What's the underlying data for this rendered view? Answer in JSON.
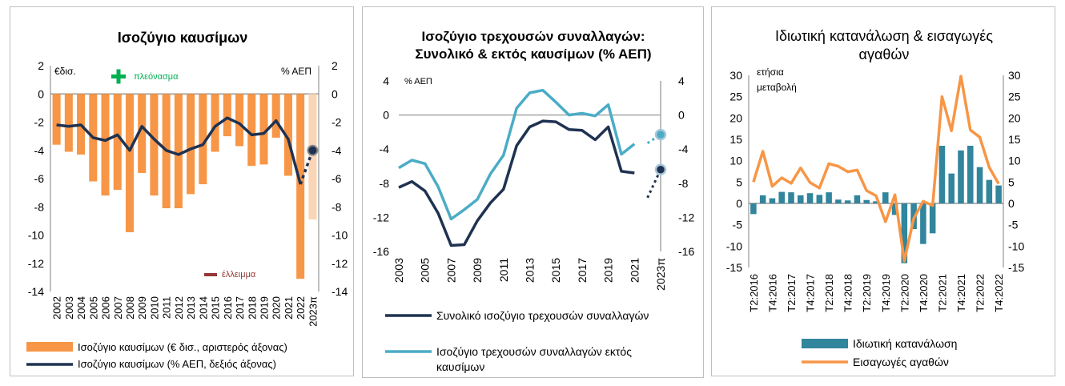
{
  "charts": [
    {
      "title": "Ισοζύγιο καυσίμων",
      "left_unit": "€δισ.",
      "right_unit": "% ΑΕΠ",
      "annotation_surplus": "πλεόνασμα",
      "annotation_deficit": "έλλειμμα",
      "legend": [
        "Ισοζύγιο καυσίμων (€ δισ., αριστερός άξονας)",
        "Ισοζύγιο καυσίμων (% ΑΕΠ, δεξιός άξονας)"
      ]
    },
    {
      "title_lines": [
        "Ισοζύγιο τρεχουσών συναλλαγών:",
        "Συνολικό & εκτός καυσίμων (% ΑΕΠ)"
      ],
      "left_unit": "% ΑΕΠ",
      "legend": [
        "Συνολικό ισοζύγιο τρεχουσών συναλλαγών",
        "Ισοζύγιο τρεχουσών συναλλαγών εκτός",
        "καυσίμων"
      ]
    },
    {
      "title_lines": [
        "Ιδιωτική κατανάλωση & εισαγωγές",
        "αγαθών"
      ],
      "left_unit_lines": [
        "ετήσια",
        "μεταβολή"
      ],
      "legend": [
        "Ιδιωτική κατανάλωση",
        "Εισαγωγές αγαθών"
      ]
    }
  ],
  "colors": {
    "orange": "#f79646",
    "orange_light": "#fbd5b5",
    "navy": "#1f3251",
    "teal": "#31859c",
    "cyan": "#4bacc6",
    "green": "#00b050",
    "darkred": "#953735",
    "gray": "#a6a6a6"
  },
  "chart_data": [
    {
      "type": "bar",
      "categories": [
        "2002",
        "2003",
        "2004",
        "2005",
        "2006",
        "2007",
        "2008",
        "2009",
        "2010",
        "2011",
        "2012",
        "2013",
        "2014",
        "2015",
        "2016",
        "2017",
        "2018",
        "2019",
        "2020",
        "2021",
        "2022",
        "2023π"
      ],
      "series": [
        {
          "name": "Ισοζύγιο καυσίμων (€ δισ., αριστερός άξονας)",
          "type": "bar",
          "axis": "left",
          "values": [
            -3.6,
            -4.1,
            -4.3,
            -6.2,
            -7.2,
            -6.8,
            -9.8,
            -5.6,
            -7.2,
            -8.1,
            -8.1,
            -7.1,
            -6.4,
            -4.1,
            -3.0,
            -3.7,
            -5.1,
            -5.0,
            -3.1,
            -5.8,
            -13.1,
            -8.9
          ]
        },
        {
          "name": "Ισοζύγιο καυσίμων (% ΑΕΠ, δεξιός άξονας)",
          "type": "line",
          "axis": "right",
          "values": [
            -2.2,
            -2.3,
            -2.2,
            -3.1,
            -3.3,
            -2.9,
            -4.0,
            -2.3,
            -3.2,
            -4.0,
            -4.3,
            -3.9,
            -3.6,
            -2.3,
            -1.7,
            -2.1,
            -2.9,
            -2.8,
            -1.9,
            -3.2,
            -6.4,
            -4.0
          ]
        }
      ],
      "ylim": [
        -14,
        2
      ],
      "yticks": [
        2,
        0,
        -2,
        -4,
        -6,
        -8,
        -10,
        -12,
        -14
      ]
    },
    {
      "type": "line",
      "x": [
        "2003",
        "2004",
        "2005",
        "2006",
        "2007",
        "2008",
        "2009",
        "2010",
        "2011",
        "2012",
        "2013",
        "2014",
        "2015",
        "2016",
        "2017",
        "2018",
        "2019",
        "2020",
        "2021",
        "2022",
        "2023π"
      ],
      "xtick_labels": [
        "2003",
        "2005",
        "2007",
        "2009",
        "2011",
        "2013",
        "2015",
        "2017",
        "2019",
        "2021",
        "2023π"
      ],
      "series": [
        {
          "name": "Συνολικό ισοζύγιο τρεχουσών συναλλαγών",
          "values": [
            -8.5,
            -7.8,
            -8.9,
            -11.5,
            -15.3,
            -15.2,
            -12.4,
            -10.3,
            -8.7,
            -3.6,
            -1.4,
            -0.7,
            -0.8,
            -1.7,
            -1.8,
            -2.9,
            -1.4,
            -6.6,
            -6.8,
            -9.7,
            -6.4
          ]
        },
        {
          "name": "Ισοζύγιο τρεχουσών συναλλαγών εκτός καυσίμων",
          "values": [
            -6.2,
            -5.3,
            -5.7,
            -8.4,
            -12.2,
            -11.1,
            -9.9,
            -6.9,
            -4.7,
            0.8,
            2.6,
            2.9,
            1.5,
            0.0,
            0.2,
            -0.1,
            1.2,
            -4.6,
            -3.4,
            -3.3,
            -2.3
          ]
        }
      ],
      "ylim": [
        -16,
        4
      ],
      "yticks": [
        4,
        0,
        -4,
        -8,
        -12,
        -16
      ]
    },
    {
      "type": "bar",
      "x": [
        "Τ2:2016",
        "Τ3:2016",
        "Τ4:2016",
        "Τ1:2017",
        "Τ2:2017",
        "Τ3:2017",
        "Τ4:2017",
        "Τ1:2018",
        "Τ2:2018",
        "Τ3:2018",
        "Τ4:2018",
        "Τ1:2019",
        "Τ2:2019",
        "Τ3:2019",
        "Τ4:2019",
        "Τ1:2020",
        "Τ2:2020",
        "Τ3:2020",
        "Τ4:2020",
        "Τ1:2021",
        "Τ2:2021",
        "Τ3:2021",
        "Τ4:2021",
        "Τ1:2022",
        "Τ2:2022",
        "Τ3:2022",
        "Τ4:2022"
      ],
      "xtick_labels": [
        "Τ2:2016",
        "Τ4:2016",
        "Τ2:2017",
        "Τ4:2017",
        "Τ2:2018",
        "Τ4:2018",
        "Τ2:2019",
        "Τ4:2019",
        "Τ2:2020",
        "Τ4:2020",
        "Τ2:2021",
        "Τ4:2021",
        "Τ2:2022",
        "Τ4:2022"
      ],
      "series": [
        {
          "name": "Ιδιωτική κατανάλωση",
          "type": "bar",
          "values": [
            -2.5,
            1.9,
            1.2,
            2.7,
            2.6,
            1.9,
            2.4,
            2.0,
            2.6,
            0.9,
            0.7,
            1.9,
            0.8,
            0.5,
            2.6,
            -2.7,
            -14.0,
            -6.0,
            -9.5,
            -7.0,
            13.5,
            7.0,
            12.4,
            13.5,
            8.5,
            5.5,
            4.2
          ]
        },
        {
          "name": "Εισαγωγές αγαθών",
          "type": "line",
          "values": [
            5.0,
            12.2,
            4.0,
            6.0,
            4.7,
            8.3,
            4.9,
            3.6,
            9.3,
            8.7,
            7.4,
            7.8,
            3.0,
            1.8,
            -4.3,
            2.0,
            -13.5,
            -3.5,
            0.5,
            -0.5,
            25.0,
            17.0,
            29.8,
            17.2,
            15.5,
            8.5,
            4.6
          ]
        }
      ],
      "ylim": [
        -15,
        30
      ],
      "yticks": [
        30,
        25,
        20,
        15,
        10,
        5,
        0,
        -5,
        -10,
        -15
      ]
    }
  ]
}
